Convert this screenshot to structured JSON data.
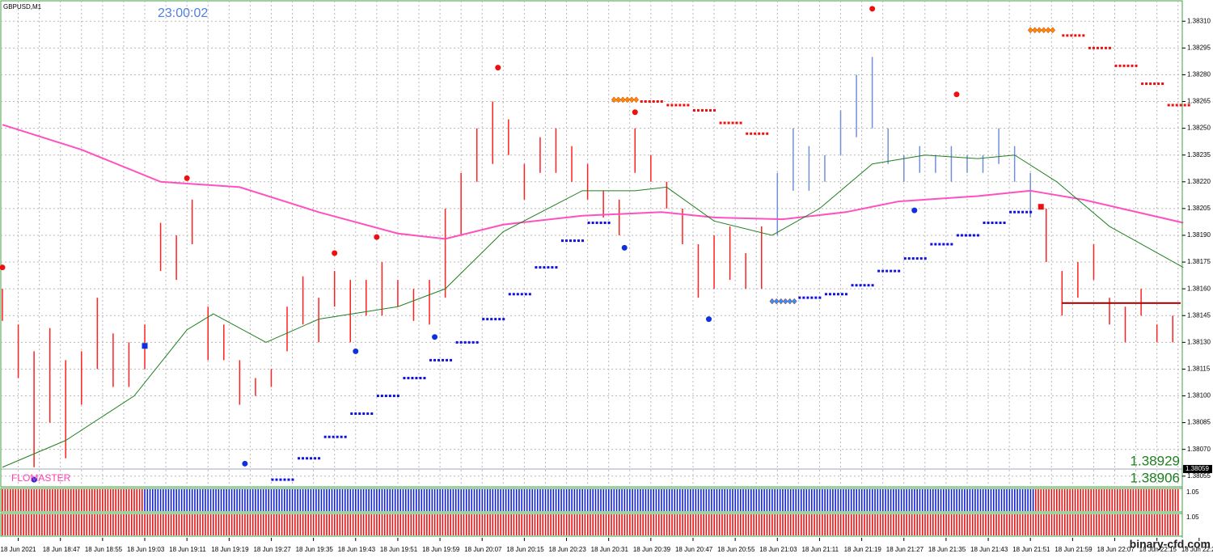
{
  "chart_data": {
    "type": "bar",
    "title": "GBPUSD,M1",
    "clock": "23:00:02",
    "indicator_label": "FLOMASTER",
    "price_labels": [
      "1.38929",
      "1.38906"
    ],
    "watermark": "binary-cfd.com",
    "current_price": 1.38059,
    "current_price_color": "#a0a8b8",
    "xlim": [
      0,
      223.5
    ],
    "ylim": [
      1.38049,
      1.38321
    ],
    "grid": true,
    "xticks": [
      {
        "value": 3,
        "label": "18 Jun 2021"
      },
      {
        "value": 11,
        "label": "18 Jun 18:47"
      },
      {
        "value": 19,
        "label": "18 Jun 18:55"
      },
      {
        "value": 27,
        "label": "18 Jun 19:03"
      },
      {
        "value": 35,
        "label": "18 Jun 19:11"
      },
      {
        "value": 43,
        "label": "18 Jun 19:19"
      },
      {
        "value": 51,
        "label": "18 Jun 19:27"
      },
      {
        "value": 59,
        "label": "18 Jun 19:35"
      },
      {
        "value": 67,
        "label": "18 Jun 19:43"
      },
      {
        "value": 75,
        "label": "18 Jun 19:51"
      },
      {
        "value": 83,
        "label": "18 Jun 19:59"
      },
      {
        "value": 91,
        "label": "18 Jun 20:07"
      },
      {
        "value": 99,
        "label": "18 Jun 20:15"
      },
      {
        "value": 107,
        "label": "18 Jun 20:23"
      },
      {
        "value": 115,
        "label": "18 Jun 20:31"
      },
      {
        "value": 123,
        "label": "18 Jun 20:39"
      },
      {
        "value": 131,
        "label": "18 Jun 20:47"
      },
      {
        "value": 139,
        "label": "18 Jun 20:55"
      },
      {
        "value": 147,
        "label": "18 Jun 21:03"
      },
      {
        "value": 155,
        "label": "18 Jun 21:11"
      },
      {
        "value": 163,
        "label": "18 Jun 21:19"
      },
      {
        "value": 171,
        "label": "18 Jun 21:27"
      },
      {
        "value": 179,
        "label": "18 Jun 21:35"
      },
      {
        "value": 187,
        "label": "18 Jun 21:43"
      },
      {
        "value": 195,
        "label": "18 Jun 21:51"
      },
      {
        "value": 203,
        "label": "18 Jun 21:59"
      },
      {
        "value": 211,
        "label": "18 Jun 22:07"
      },
      {
        "value": 219,
        "label": "18 Jun 22:15"
      },
      {
        "value": 227,
        "label": "18 Jun 22:2"
      }
    ],
    "yticks": [
      {
        "value": 1.3831,
        "label": "1.38310"
      },
      1.38295,
      {
        "value": 1.3828,
        "label": "1.38280"
      },
      1.38265,
      {
        "value": 1.3825,
        "label": "1.38250"
      },
      1.38235,
      {
        "value": 1.3822,
        "label": "1.38220"
      },
      1.38205,
      {
        "value": 1.3819,
        "label": "1.38190"
      },
      1.38175,
      {
        "value": 1.3816,
        "label": "1.38160"
      },
      1.38145,
      {
        "value": 1.3813,
        "label": "1.38130"
      },
      1.38115,
      {
        "value": 1.381,
        "label": "1.38100"
      },
      1.38085,
      {
        "value": 1.3807,
        "label": "1.38070"
      },
      1.38055
    ],
    "series": [
      {
        "color": "#ff2020",
        "x": [
          0,
          3,
          6,
          9,
          12,
          15,
          18,
          21,
          24,
          27,
          30,
          33,
          36,
          39,
          42,
          45,
          48,
          51,
          54,
          57,
          60,
          63,
          66,
          69,
          72,
          75,
          78,
          81,
          84,
          87,
          90,
          93,
          96,
          99,
          102,
          105,
          108,
          111,
          114,
          117,
          120,
          123,
          126,
          129,
          132,
          135,
          138,
          141,
          144
        ],
        "high": [
          1.3816,
          1.3814,
          1.38125,
          1.38138,
          1.3812,
          1.38125,
          1.38155,
          1.38135,
          1.3813,
          1.3814,
          1.38197,
          1.3819,
          1.3821,
          1.3815,
          1.3814,
          1.3812,
          1.3811,
          1.38115,
          1.3815,
          1.38167,
          1.38155,
          1.3817,
          1.38165,
          1.38165,
          1.38175,
          1.38165,
          1.3816,
          1.38165,
          1.38205,
          1.38225,
          1.3825,
          1.38265,
          1.38255,
          1.3823,
          1.38245,
          1.3825,
          1.3824,
          1.3823,
          1.38215,
          1.3821,
          1.3825,
          1.38235,
          1.3822,
          1.38205,
          1.38185,
          1.3819,
          1.38195,
          1.3818,
          1.38195
        ],
        "low": [
          1.38142,
          1.3811,
          1.3806,
          1.38085,
          1.38065,
          1.38095,
          1.38115,
          1.38105,
          1.38105,
          1.38115,
          1.3817,
          1.38165,
          1.38185,
          1.3812,
          1.3812,
          1.38095,
          1.381,
          1.38105,
          1.38125,
          1.3814,
          1.3813,
          1.3815,
          1.3813,
          1.38145,
          1.38145,
          1.3815,
          1.38142,
          1.3814,
          1.38155,
          1.3819,
          1.3822,
          1.3823,
          1.38235,
          1.3821,
          1.38225,
          1.38225,
          1.3822,
          1.3821,
          1.382,
          1.3819,
          1.38225,
          1.3822,
          1.38205,
          1.38185,
          1.38155,
          1.3816,
          1.38165,
          1.3816,
          1.3816
        ]
      },
      {
        "color": "#7090d8",
        "x": [
          147,
          150,
          153,
          156,
          159,
          162,
          165,
          168,
          171,
          174,
          177,
          180,
          183,
          186,
          189,
          192,
          195
        ],
        "high": [
          1.38225,
          1.3825,
          1.3824,
          1.38235,
          1.3826,
          1.3828,
          1.3829,
          1.3825,
          1.38235,
          1.3824,
          1.38235,
          1.3824,
          1.38235,
          1.38235,
          1.3825,
          1.3824,
          1.38225
        ],
        "low": [
          1.3819,
          1.38215,
          1.38215,
          1.3822,
          1.38235,
          1.38245,
          1.3825,
          1.3823,
          1.3822,
          1.38225,
          1.38225,
          1.3822,
          1.38225,
          1.38225,
          1.3823,
          1.3822,
          1.382
        ]
      },
      {
        "color": "#ff2020",
        "x": [
          198,
          201,
          204,
          207,
          210,
          213,
          216,
          219,
          222
        ],
        "high": [
          1.38205,
          1.3817,
          1.38175,
          1.38185,
          1.38155,
          1.3815,
          1.3816,
          1.3814,
          1.38145
        ],
        "low": [
          1.38175,
          1.38145,
          1.38155,
          1.38165,
          1.3814,
          1.3813,
          1.38145,
          1.3813,
          1.3813
        ]
      }
    ],
    "lines": [
      {
        "color": "#ff50c0",
        "x": [
          0,
          15,
          30,
          45,
          60,
          75,
          84,
          95,
          110,
          125,
          135,
          148,
          160,
          170,
          185,
          195,
          205,
          224
        ],
        "values": [
          1.38252,
          1.38238,
          1.3822,
          1.38217,
          1.38203,
          1.38191,
          1.38188,
          1.38196,
          1.38201,
          1.38203,
          1.382,
          1.38199,
          1.38203,
          1.38209,
          1.38212,
          1.38215,
          1.3821,
          1.38197
        ]
      },
      {
        "color": "#208020",
        "x": [
          0,
          12,
          25,
          35,
          40,
          50,
          60,
          75,
          84,
          95,
          110,
          120,
          126,
          135,
          146,
          155,
          165,
          175,
          185,
          192,
          200,
          210,
          224
        ],
        "values": [
          1.3806,
          1.38075,
          1.381,
          1.38137,
          1.38146,
          1.3813,
          1.38143,
          1.3815,
          1.3816,
          1.38192,
          1.38215,
          1.38215,
          1.38217,
          1.38198,
          1.3819,
          1.38205,
          1.3823,
          1.38235,
          1.38233,
          1.38235,
          1.3822,
          1.38195,
          1.38172
        ]
      }
    ],
    "levels": [
      {
        "color": "#1010e0",
        "marker": "dash",
        "x": [
          51,
          56,
          61,
          66,
          71,
          76,
          81,
          86,
          91,
          96,
          101,
          106,
          111,
          151,
          156,
          161,
          166,
          171,
          176,
          181,
          186,
          191
        ],
        "values": [
          1.38053,
          1.38065,
          1.38077,
          1.3809,
          1.381,
          1.3811,
          1.3812,
          1.3813,
          1.38143,
          1.38157,
          1.38172,
          1.38187,
          1.38197,
          1.38155,
          1.38157,
          1.38162,
          1.3817,
          1.38177,
          1.38185,
          1.3819,
          1.38197,
          1.38203
        ]
      },
      {
        "color": "#3090ff",
        "marker": "diamond",
        "x": [
          146
        ],
        "values": [
          1.38153
        ]
      },
      {
        "color": "#ee1010",
        "marker": "dash",
        "x": [
          121,
          126,
          131,
          136,
          141,
          201,
          206,
          211,
          216,
          221
        ],
        "values": [
          1.38265,
          1.38263,
          1.3826,
          1.38253,
          1.38247,
          1.38302,
          1.38295,
          1.38285,
          1.38275,
          1.38263
        ]
      },
      {
        "color": "#ff8800",
        "marker": "diamond",
        "x": [
          116,
          195
        ],
        "values": [
          1.38266,
          1.38305
        ]
      }
    ],
    "dots": [
      {
        "color": "#ee1010",
        "x": [
          0,
          35,
          63,
          71,
          94,
          120,
          165,
          181
        ],
        "values": [
          1.38172,
          1.38222,
          1.3818,
          1.38189,
          1.38284,
          1.38259,
          1.38317,
          1.38269
        ]
      },
      {
        "color": "#1030e0",
        "x": [
          6,
          46,
          67,
          82,
          118,
          134,
          173
        ],
        "values": [
          1.38053,
          1.38062,
          1.38125,
          1.38133,
          1.38183,
          1.38143,
          1.38204
        ]
      }
    ],
    "squares": {
      "x": [
        27,
        197
      ],
      "values": [
        1.38128,
        1.38206
      ],
      "colors": [
        "#1030e0",
        "#ee1010"
      ]
    },
    "hline": {
      "color": "#900000",
      "x": [
        201,
        223.5
      ],
      "value": 1.38152
    },
    "subwindows": [
      {
        "level": "1.05",
        "ranges": [
          [
            0,
            27,
            "#ee1010"
          ],
          [
            27,
            196,
            "#1020e0"
          ],
          [
            196,
            223.5,
            "#ee1010"
          ]
        ]
      },
      {
        "level": "1.05",
        "ranges": [
          [
            0,
            223.5,
            "#ee1010"
          ]
        ]
      }
    ]
  }
}
